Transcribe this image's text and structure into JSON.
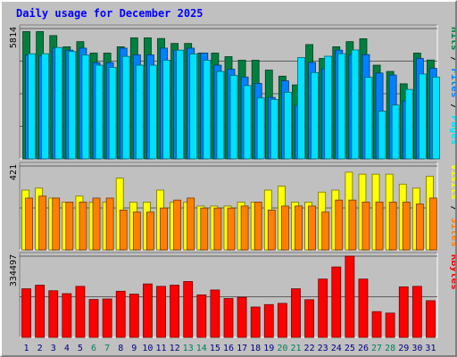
{
  "chart_data": {
    "type": "bar",
    "title": "Daily usage for December 2025",
    "categories": [
      "1",
      "2",
      "3",
      "4",
      "5",
      "6",
      "7",
      "8",
      "9",
      "10",
      "11",
      "12",
      "13",
      "14",
      "15",
      "16",
      "17",
      "18",
      "19",
      "20",
      "21",
      "22",
      "23",
      "24",
      "25",
      "26",
      "27",
      "28",
      "29",
      "30",
      "31"
    ],
    "weekend_days": [
      "6",
      "7",
      "13",
      "14",
      "20",
      "21",
      "27",
      "28"
    ],
    "panels": [
      {
        "name": "top",
        "ymax_label": "5814",
        "ymax": 5814,
        "right_labels": [
          "Hits",
          "Files",
          "Pages"
        ],
        "series": [
          {
            "name": "Hits",
            "color": "#008040",
            "values": [
              5680,
              5680,
              5500,
              5000,
              5230,
              4720,
              4720,
              5000,
              5400,
              5400,
              5370,
              5150,
              5150,
              4720,
              4720,
              4560,
              4400,
              4400,
              3960,
              3690,
              3300,
              5100,
              4480,
              5000,
              5230,
              5360,
              4180,
              3900,
              3350,
              4720,
              4410
            ]
          },
          {
            "name": "Files",
            "color": "#0080ff",
            "values": [
              4640,
              4590,
              4940,
              4850,
              4940,
              4290,
              4290,
              4940,
              4640,
              4640,
              4940,
              4850,
              4940,
              4720,
              4180,
              4000,
              3650,
              3370,
              2740,
              3480,
              2380,
              4300,
              4020,
              4850,
              4650,
              4650,
              3830,
              3740,
              2580,
              4480,
              4040
            ]
          },
          {
            "name": "Pages",
            "color": "#00e0ff",
            "values": [
              4690,
              4690,
              4970,
              4790,
              4630,
              4180,
              4080,
              4570,
              4180,
              4180,
              4400,
              4850,
              4680,
              4400,
              3900,
              3720,
              3270,
              2720,
              2650,
              2970,
              4520,
              3850,
              4580,
              4690,
              4860,
              3640,
              2130,
              2400,
              3100,
              3790,
              3650
            ]
          }
        ]
      },
      {
        "name": "middle",
        "ymax_label": "421",
        "ymax": 421,
        "right_labels": [
          "Visits",
          "Sites"
        ],
        "series": [
          {
            "name": "Visits",
            "color": "#ffff00",
            "values": [
              300,
              310,
              260,
              240,
              270,
              240,
              240,
              360,
              240,
              240,
              300,
              240,
              240,
              220,
              220,
              220,
              240,
              240,
              300,
              320,
              240,
              240,
              290,
              300,
              390,
              380,
              380,
              380,
              330,
              310,
              370
            ]
          },
          {
            "name": "Sites",
            "color": "#ff8000",
            "values": [
              260,
              270,
              260,
              240,
              240,
              260,
              260,
              200,
              190,
              190,
              210,
              250,
              260,
              210,
              210,
              210,
              220,
              240,
              200,
              220,
              220,
              220,
              190,
              250,
              250,
              240,
              240,
              240,
              240,
              230,
              260
            ]
          }
        ]
      },
      {
        "name": "bottom",
        "ymax_label": "334497",
        "ymax": 334497,
        "right_labels": [
          "KBytes"
        ],
        "series": [
          {
            "name": "KBytes",
            "color": "#ff0000",
            "values": [
              200000,
              215000,
              192000,
              180000,
              210000,
              156000,
              158000,
              190000,
              178000,
              220000,
              210000,
              215000,
              230000,
              175000,
              195000,
              160000,
              165000,
              125000,
              135000,
              140000,
              200000,
              155000,
              240000,
              290000,
              334497,
              240000,
              106000,
              100000,
              208000,
              210000,
              151000
            ]
          }
        ]
      }
    ]
  },
  "colors": {
    "title": "#0000ff",
    "weekday_label": "#000080",
    "weekend_label": "#00805c",
    "plot_bg": "#c0c0c0",
    "grid": "#000000"
  }
}
